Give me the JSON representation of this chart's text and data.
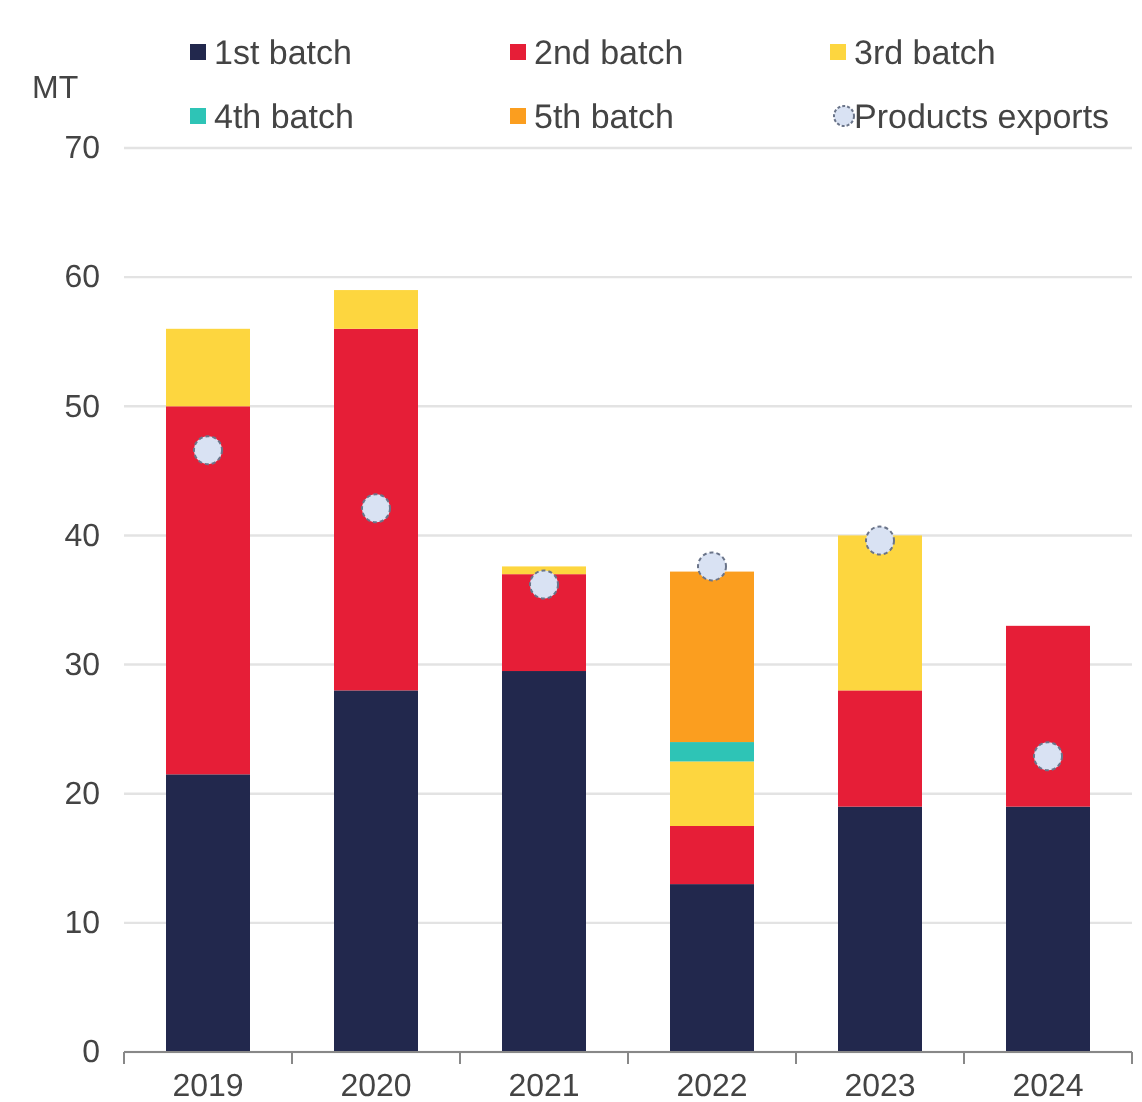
{
  "chart_data": {
    "type": "bar",
    "stacked": true,
    "ylabel": "MT",
    "categories": [
      "2019",
      "2020",
      "2021",
      "2022",
      "2023",
      "2024"
    ],
    "series": [
      {
        "name": "1st batch",
        "color": "#22284d",
        "values": [
          21.5,
          28,
          29.5,
          13,
          19,
          19
        ]
      },
      {
        "name": "2nd batch",
        "color": "#e61e37",
        "values": [
          28.5,
          28,
          7.5,
          4.5,
          9,
          14
        ]
      },
      {
        "name": "3rd batch",
        "color": "#fdd63f",
        "values": [
          6,
          3,
          0.6,
          5,
          12,
          null
        ]
      },
      {
        "name": "4th batch",
        "color": "#2ec4b6",
        "values": [
          null,
          null,
          null,
          1.5,
          null,
          null
        ]
      },
      {
        "name": "5th batch",
        "color": "#fb9e1f",
        "values": [
          null,
          null,
          null,
          13.2,
          null,
          null
        ]
      },
      {
        "name": "Products exports",
        "type": "scatter",
        "color": "#d9e2f3",
        "marker": "circle",
        "values": [
          46.6,
          42.1,
          36.2,
          37.6,
          39.6,
          22.9
        ]
      }
    ],
    "ylim": [
      0,
      70
    ],
    "yticks": [
      0,
      10,
      20,
      30,
      40,
      50,
      60,
      70
    ],
    "grid": "y",
    "legend": "top"
  }
}
